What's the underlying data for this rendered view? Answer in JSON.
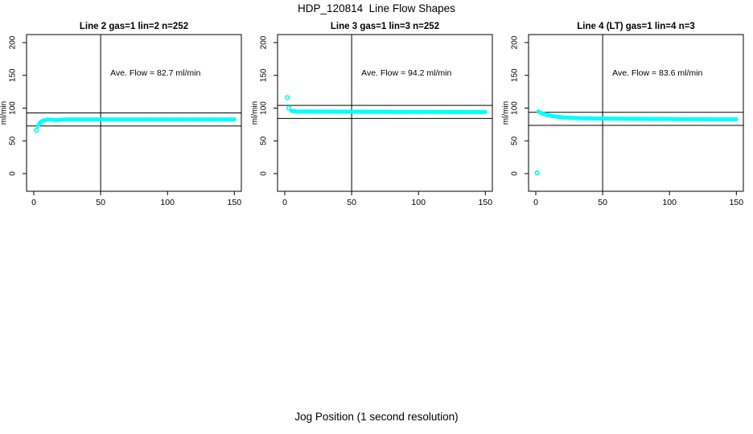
{
  "title": "HDP_120814  Line Flow Shapes",
  "xlabel": "Jog Position (1 second resolution)",
  "colors": {
    "points": "#00FFFF",
    "axis": "#000000",
    "background": "#FFFFFF"
  },
  "chart_data": {
    "type": "scatter",
    "ylabel": "ml/min",
    "x_ticks": [
      0,
      50,
      100,
      150
    ],
    "y_ticks": [
      0,
      50,
      100,
      150,
      200
    ],
    "xlim": [
      -5,
      155
    ],
    "ylim": [
      -27,
      212
    ],
    "grid": false,
    "legend": "none",
    "panels": [
      {
        "title": "Line 2 gas=1 lin=2 n=252",
        "line": "Line 2",
        "gas": 1,
        "lin": 2,
        "n": 252,
        "ave_flow": 82.7,
        "ave_flow_label": "Ave. Flow =  82.7  ml/min",
        "ref_lines_y": [
          92.7,
          72.7
        ],
        "ref_line_x": 50,
        "outliers": [
          [
            2,
            66
          ]
        ],
        "series_x": [
          3,
          5,
          7,
          9,
          11,
          13,
          15,
          17,
          19,
          21,
          23,
          25,
          27,
          29,
          31,
          33,
          35,
          37,
          39,
          41,
          43,
          45,
          47,
          49,
          51,
          53,
          55,
          57,
          59,
          61,
          63,
          65,
          67,
          69,
          71,
          73,
          75,
          77,
          79,
          81,
          83,
          85,
          87,
          89,
          91,
          93,
          95,
          97,
          99,
          101,
          103,
          105,
          107,
          109,
          111,
          113,
          115,
          117,
          119,
          121,
          123,
          125,
          127,
          129,
          131,
          133,
          135,
          137,
          139,
          141,
          143,
          145,
          147,
          149,
          150
        ],
        "series_y": [
          72.5,
          78.5,
          81.0,
          82.0,
          82.3,
          82.4,
          82.0,
          81.6,
          81.9,
          82.3,
          82.5,
          82.6,
          82.8,
          82.4,
          83.0,
          82.6,
          82.9,
          82.5,
          82.8,
          82.4,
          83.0,
          82.6,
          82.9,
          82.5,
          82.8,
          82.4,
          83.0,
          82.6,
          82.9,
          82.5,
          82.8,
          82.4,
          83.0,
          82.6,
          82.9,
          82.5,
          82.8,
          82.4,
          83.0,
          82.6,
          82.9,
          82.5,
          82.8,
          82.4,
          83.0,
          82.6,
          82.9,
          82.5,
          82.8,
          82.4,
          83.0,
          82.6,
          82.9,
          82.5,
          82.8,
          82.4,
          83.0,
          82.6,
          82.9,
          82.5,
          82.8,
          82.4,
          83.0,
          82.6,
          82.9,
          82.5,
          82.8,
          82.4,
          83.0,
          82.6,
          82.9,
          82.5,
          82.8,
          82.6,
          82.8
        ]
      },
      {
        "title": "Line 3 gas=1 lin=3 n=252",
        "line": "Line 3",
        "gas": 1,
        "lin": 3,
        "n": 252,
        "ave_flow": 94.2,
        "ave_flow_label": "Ave. Flow =  94.2  ml/min",
        "ref_lines_y": [
          104.2,
          84.2
        ],
        "ref_line_x": 50,
        "outliers": [
          [
            2,
            116
          ],
          [
            3,
            100.2
          ]
        ],
        "series_x": [
          5,
          7,
          9,
          11,
          13,
          15,
          17,
          19,
          21,
          23,
          25,
          27,
          29,
          31,
          33,
          35,
          37,
          39,
          41,
          43,
          45,
          47,
          49,
          51,
          53,
          55,
          57,
          59,
          61,
          63,
          65,
          67,
          69,
          71,
          73,
          75,
          77,
          79,
          81,
          83,
          85,
          87,
          89,
          91,
          93,
          95,
          97,
          99,
          101,
          103,
          105,
          107,
          109,
          111,
          113,
          115,
          117,
          119,
          121,
          123,
          125,
          127,
          129,
          131,
          133,
          135,
          137,
          139,
          141,
          143,
          145,
          147,
          149,
          150
        ],
        "series_y": [
          95.6,
          95.2,
          95.0,
          94.9,
          94.9,
          94.8,
          94.8,
          94.7,
          94.9,
          94.6,
          94.8,
          94.5,
          94.8,
          94.6,
          94.7,
          94.5,
          94.7,
          94.4,
          94.6,
          94.5,
          94.6,
          94.4,
          94.6,
          94.3,
          94.6,
          94.4,
          94.5,
          94.3,
          94.5,
          94.3,
          94.5,
          94.3,
          94.4,
          94.2,
          94.5,
          94.3,
          94.4,
          94.2,
          94.4,
          94.2,
          94.4,
          94.2,
          94.3,
          94.1,
          94.4,
          94.2,
          94.3,
          94.1,
          94.3,
          94.1,
          94.3,
          94.1,
          94.2,
          94.0,
          94.3,
          94.1,
          94.2,
          94.0,
          94.2,
          94.0,
          94.2,
          94.0,
          94.1,
          93.9,
          94.2,
          94.0,
          94.1,
          93.9,
          94.1,
          93.9,
          94.1,
          93.9,
          94.0,
          94.0
        ]
      },
      {
        "title": "Line 4 (LT) gas=1 lin=4 n=3",
        "line": "Line 4 (LT)",
        "gas": 1,
        "lin": 4,
        "n": 3,
        "ave_flow": 83.6,
        "ave_flow_label": "Ave. Flow =  83.6  ml/min",
        "ref_lines_y": [
          93.6,
          73.6
        ],
        "ref_line_x": 50,
        "outliers": [
          [
            1,
            1
          ]
        ],
        "series_x": [
          2,
          3,
          5,
          7,
          9,
          11,
          13,
          15,
          17,
          19,
          21,
          23,
          25,
          27,
          29,
          31,
          33,
          35,
          37,
          39,
          41,
          43,
          45,
          47,
          49,
          51,
          53,
          55,
          57,
          59,
          61,
          63,
          65,
          67,
          69,
          71,
          73,
          75,
          77,
          79,
          81,
          83,
          85,
          87,
          89,
          91,
          93,
          95,
          97,
          99,
          101,
          103,
          105,
          107,
          109,
          111,
          113,
          115,
          117,
          119,
          121,
          123,
          125,
          127,
          129,
          131,
          133,
          135,
          137,
          139,
          141,
          143,
          145,
          147,
          149,
          150
        ],
        "series_y": [
          95.0,
          93.5,
          91.8,
          90.4,
          89.3,
          88.4,
          87.7,
          87.1,
          86.6,
          86.2,
          85.8,
          85.5,
          85.3,
          85.1,
          84.9,
          84.8,
          84.6,
          84.5,
          84.4,
          84.3,
          84.3,
          84.2,
          84.1,
          84.1,
          84.0,
          84.0,
          83.9,
          83.9,
          83.9,
          83.8,
          83.8,
          83.8,
          83.7,
          83.7,
          83.7,
          83.6,
          83.6,
          83.6,
          83.5,
          83.5,
          83.5,
          83.5,
          83.4,
          83.4,
          83.4,
          83.4,
          83.3,
          83.3,
          83.3,
          83.3,
          83.3,
          83.2,
          83.2,
          83.2,
          83.2,
          83.2,
          83.2,
          83.1,
          83.1,
          83.1,
          83.1,
          83.1,
          83.1,
          83.0,
          83.0,
          83.0,
          83.0,
          83.0,
          83.0,
          83.0,
          82.9,
          82.9,
          82.9,
          82.9,
          82.9,
          82.9
        ]
      }
    ]
  }
}
